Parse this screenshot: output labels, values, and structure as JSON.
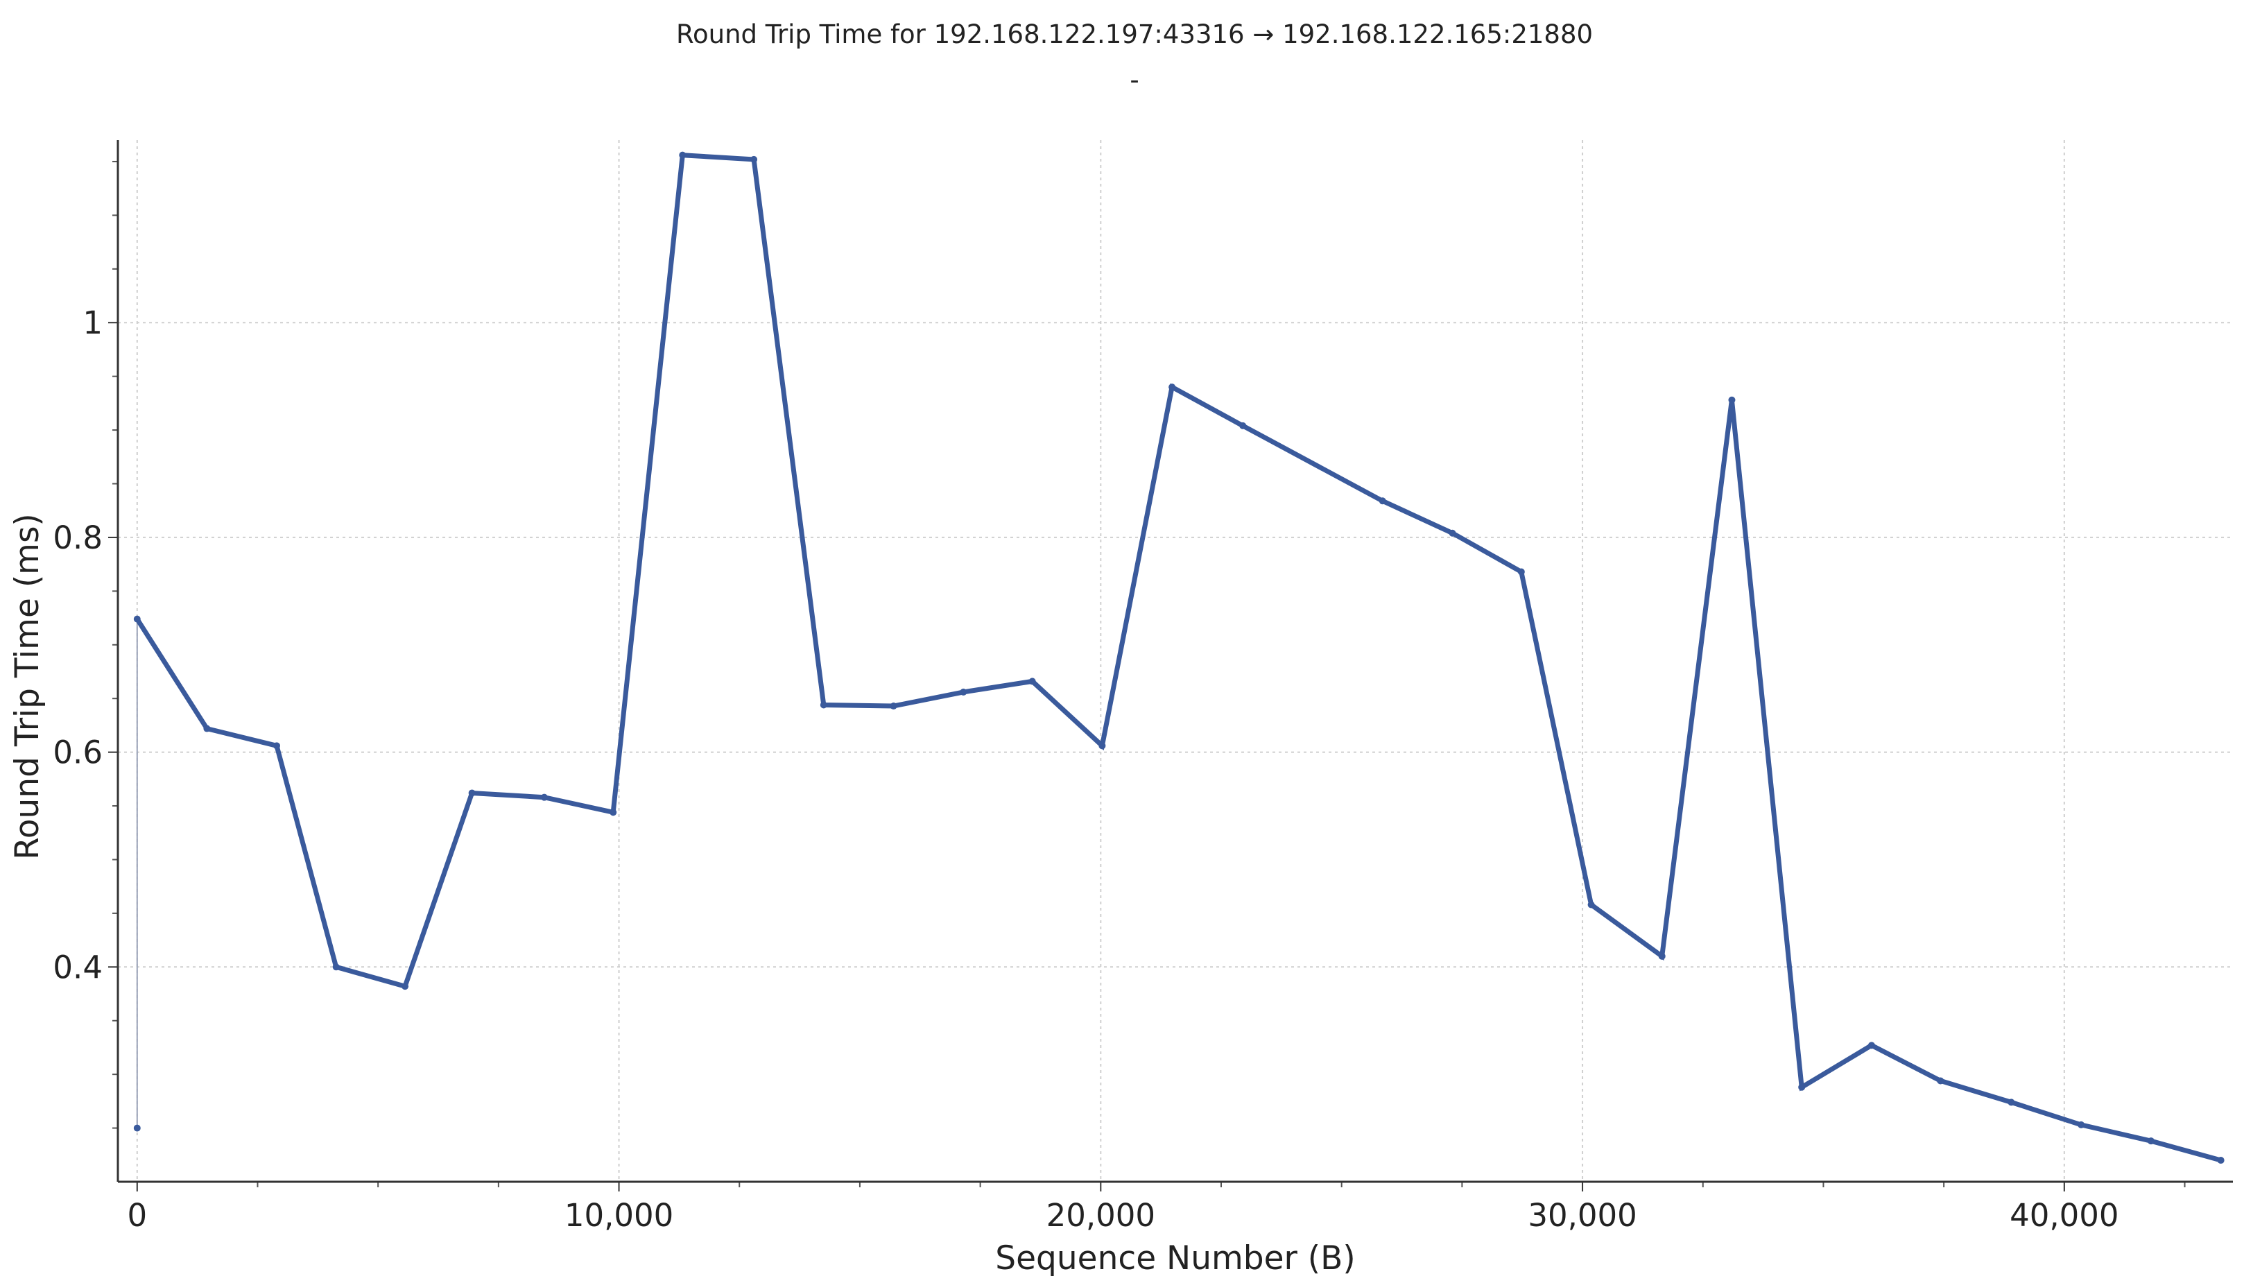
{
  "chart_data": {
    "type": "line",
    "title": "Round Trip Time for 192.168.122.197:43316 → 192.168.122.165:21880",
    "subtitle": "-",
    "xlabel": "Sequence Number (B)",
    "ylabel": "Round Trip Time (ms)",
    "xlim": [
      -400,
      43500
    ],
    "ylim": [
      0.2,
      1.17
    ],
    "x_ticks": [
      0,
      10000,
      20000,
      30000,
      40000
    ],
    "x_tick_labels": [
      "0",
      "10,000",
      "20,000",
      "30,000",
      "40,000"
    ],
    "y_ticks": [
      0.4,
      0.6,
      0.8,
      1.0
    ],
    "y_tick_labels": [
      "0.4",
      "0.6",
      "0.8",
      "1"
    ],
    "grid": true,
    "line_color": "#3a5a9c",
    "series": [
      {
        "x": [
          0,
          1448,
          2896,
          4130,
          5560,
          6950,
          8450,
          9880,
          11320,
          12800,
          14250,
          15700,
          17150,
          18580,
          20030,
          21480,
          22950,
          25850,
          27300,
          28730,
          30180,
          31650,
          33100,
          34550,
          36000,
          37430,
          38900,
          40350,
          41800,
          43250
        ],
        "values": [
          0.724,
          0.622,
          0.606,
          0.4,
          0.382,
          0.562,
          0.558,
          0.544,
          1.156,
          1.152,
          0.644,
          0.643,
          0.656,
          0.666,
          0.606,
          0.94,
          0.904,
          0.834,
          0.804,
          0.768,
          0.458,
          0.41,
          0.928,
          0.288,
          0.327,
          0.294,
          0.274,
          0.253,
          0.238,
          0.22
        ]
      }
    ],
    "outlier_points": [
      {
        "x": 0,
        "y": 0.25
      }
    ]
  }
}
